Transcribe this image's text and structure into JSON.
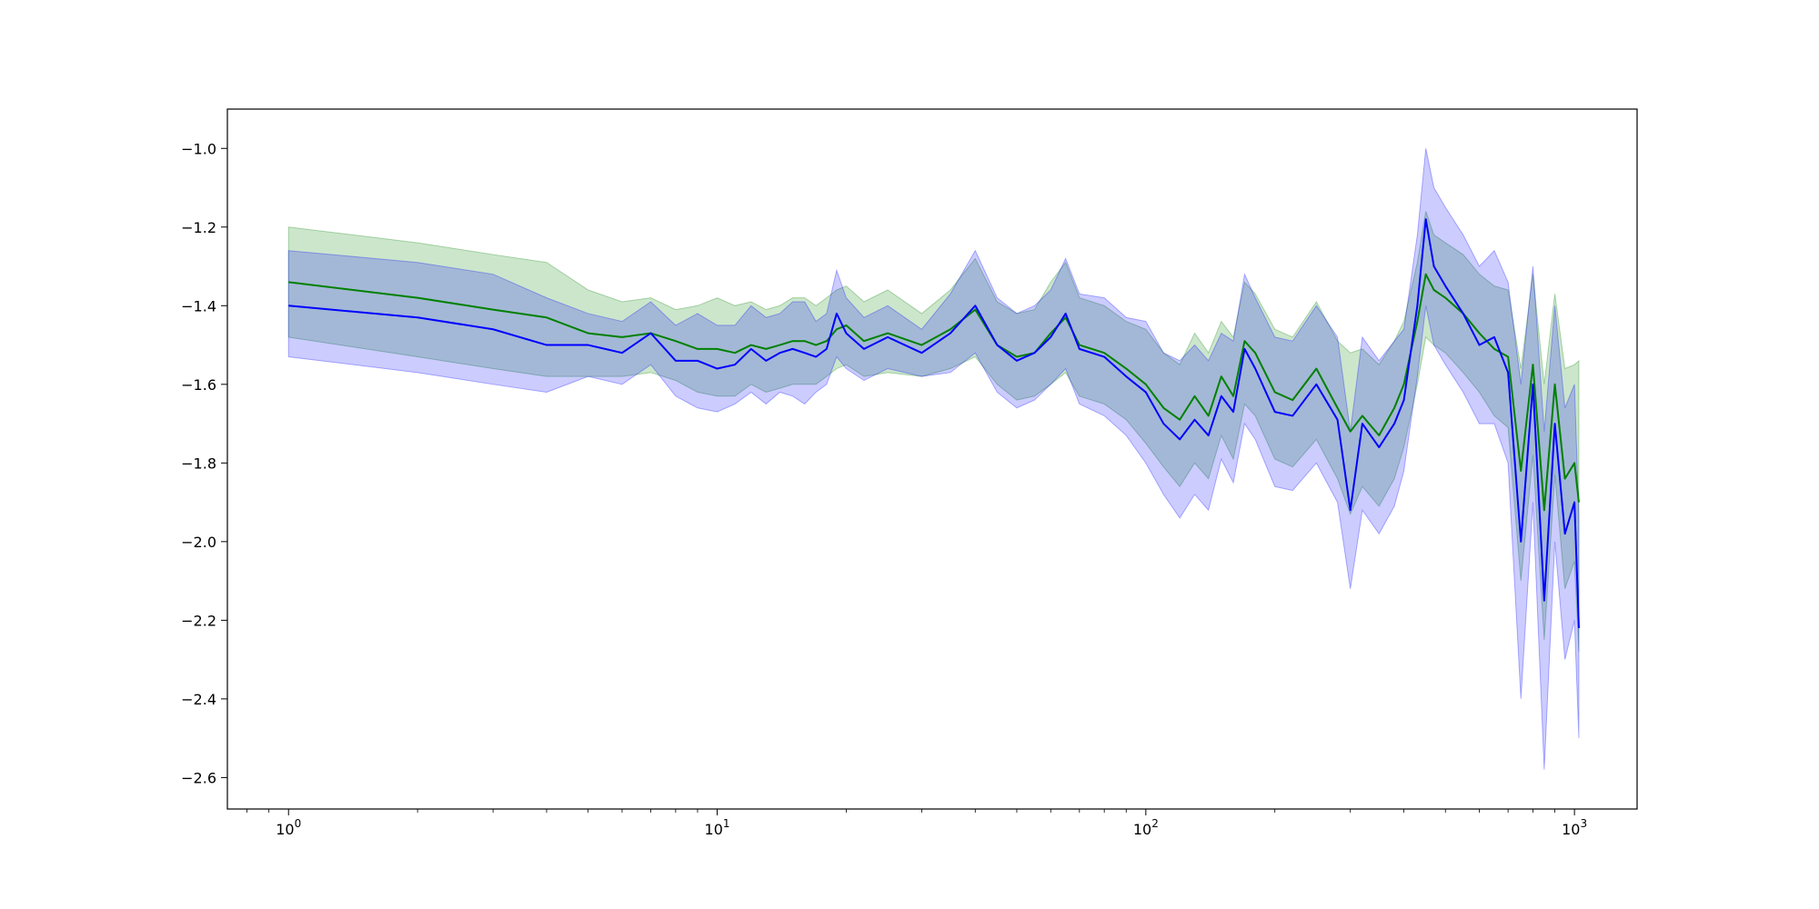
{
  "chart_data": {
    "type": "line",
    "title": "",
    "xlabel": "",
    "ylabel": "",
    "xscale": "log",
    "xlim": [
      0.72,
      1400
    ],
    "ylim": [
      -2.68,
      -0.9
    ],
    "grid": false,
    "legend": "none",
    "x_ticks": [
      {
        "value": 1,
        "base": "10",
        "exp": "0"
      },
      {
        "value": 10,
        "base": "10",
        "exp": "1"
      },
      {
        "value": 100,
        "base": "10",
        "exp": "2"
      },
      {
        "value": 1000,
        "base": "10",
        "exp": "3"
      }
    ],
    "y_ticks": [
      {
        "value": -1.0,
        "label": "−1.0"
      },
      {
        "value": -1.2,
        "label": "−1.2"
      },
      {
        "value": -1.4,
        "label": "−1.4"
      },
      {
        "value": -1.6,
        "label": "−1.6"
      },
      {
        "value": -1.8,
        "label": "−1.8"
      },
      {
        "value": -2.0,
        "label": "−2.0"
      },
      {
        "value": -2.2,
        "label": "−2.2"
      },
      {
        "value": -2.4,
        "label": "−2.4"
      },
      {
        "value": -2.6,
        "label": "−2.6"
      }
    ],
    "series": [
      {
        "color": "#008000",
        "band_color": "#008000",
        "band_opacity": 0.2,
        "x": [
          1,
          2,
          3,
          4,
          5,
          6,
          7,
          8,
          9,
          10,
          11,
          12,
          13,
          14,
          15,
          16,
          17,
          18,
          19,
          20,
          22,
          25,
          30,
          35,
          40,
          45,
          50,
          55,
          60,
          65,
          70,
          80,
          90,
          100,
          110,
          120,
          130,
          140,
          150,
          160,
          170,
          180,
          200,
          220,
          250,
          280,
          300,
          320,
          350,
          380,
          400,
          430,
          450,
          470,
          500,
          550,
          600,
          650,
          700,
          750,
          800,
          850,
          900,
          950,
          1000,
          1024
        ],
        "y": [
          -1.34,
          -1.38,
          -1.41,
          -1.43,
          -1.47,
          -1.48,
          -1.47,
          -1.49,
          -1.51,
          -1.51,
          -1.52,
          -1.5,
          -1.51,
          -1.5,
          -1.49,
          -1.49,
          -1.5,
          -1.49,
          -1.46,
          -1.45,
          -1.49,
          -1.47,
          -1.5,
          -1.46,
          -1.41,
          -1.5,
          -1.53,
          -1.52,
          -1.47,
          -1.43,
          -1.5,
          -1.52,
          -1.56,
          -1.6,
          -1.66,
          -1.69,
          -1.63,
          -1.68,
          -1.58,
          -1.63,
          -1.49,
          -1.52,
          -1.62,
          -1.64,
          -1.56,
          -1.66,
          -1.72,
          -1.68,
          -1.73,
          -1.66,
          -1.6,
          -1.44,
          -1.32,
          -1.36,
          -1.38,
          -1.42,
          -1.47,
          -1.51,
          -1.53,
          -1.82,
          -1.55,
          -1.92,
          -1.6,
          -1.84,
          -1.8,
          -1.9
        ],
        "lower": [
          -1.48,
          -1.53,
          -1.56,
          -1.58,
          -1.58,
          -1.58,
          -1.57,
          -1.59,
          -1.62,
          -1.63,
          -1.63,
          -1.6,
          -1.62,
          -1.61,
          -1.6,
          -1.6,
          -1.6,
          -1.58,
          -1.56,
          -1.55,
          -1.58,
          -1.57,
          -1.58,
          -1.56,
          -1.53,
          -1.6,
          -1.64,
          -1.63,
          -1.6,
          -1.57,
          -1.63,
          -1.65,
          -1.69,
          -1.75,
          -1.81,
          -1.86,
          -1.8,
          -1.84,
          -1.73,
          -1.79,
          -1.65,
          -1.68,
          -1.79,
          -1.81,
          -1.74,
          -1.84,
          -1.93,
          -1.86,
          -1.91,
          -1.84,
          -1.76,
          -1.6,
          -1.48,
          -1.5,
          -1.52,
          -1.57,
          -1.62,
          -1.68,
          -1.71,
          -2.1,
          -1.78,
          -2.25,
          -1.83,
          -2.12,
          -2.05,
          -2.28
        ],
        "upper": [
          -1.2,
          -1.24,
          -1.27,
          -1.29,
          -1.36,
          -1.39,
          -1.38,
          -1.41,
          -1.4,
          -1.38,
          -1.4,
          -1.39,
          -1.41,
          -1.4,
          -1.38,
          -1.38,
          -1.4,
          -1.38,
          -1.36,
          -1.35,
          -1.39,
          -1.36,
          -1.42,
          -1.36,
          -1.28,
          -1.39,
          -1.42,
          -1.41,
          -1.34,
          -1.29,
          -1.38,
          -1.4,
          -1.44,
          -1.46,
          -1.52,
          -1.55,
          -1.47,
          -1.52,
          -1.44,
          -1.48,
          -1.34,
          -1.37,
          -1.46,
          -1.48,
          -1.39,
          -1.49,
          -1.52,
          -1.51,
          -1.55,
          -1.49,
          -1.44,
          -1.29,
          -1.16,
          -1.22,
          -1.24,
          -1.27,
          -1.32,
          -1.35,
          -1.36,
          -1.56,
          -1.32,
          -1.6,
          -1.37,
          -1.56,
          -1.55,
          -1.54
        ]
      },
      {
        "color": "#0000ff",
        "band_color": "#0000ff",
        "band_opacity": 0.2,
        "x": [
          1,
          2,
          3,
          4,
          5,
          6,
          7,
          8,
          9,
          10,
          11,
          12,
          13,
          14,
          15,
          16,
          17,
          18,
          19,
          20,
          22,
          25,
          30,
          35,
          40,
          45,
          50,
          55,
          60,
          65,
          70,
          80,
          90,
          100,
          110,
          120,
          130,
          140,
          150,
          160,
          170,
          180,
          200,
          220,
          250,
          280,
          300,
          320,
          350,
          380,
          400,
          430,
          450,
          470,
          500,
          550,
          600,
          650,
          700,
          750,
          800,
          850,
          900,
          950,
          1000,
          1024
        ],
        "y": [
          -1.4,
          -1.43,
          -1.46,
          -1.5,
          -1.5,
          -1.52,
          -1.47,
          -1.54,
          -1.54,
          -1.56,
          -1.55,
          -1.51,
          -1.54,
          -1.52,
          -1.51,
          -1.52,
          -1.53,
          -1.51,
          -1.42,
          -1.47,
          -1.51,
          -1.48,
          -1.52,
          -1.47,
          -1.4,
          -1.5,
          -1.54,
          -1.52,
          -1.48,
          -1.42,
          -1.51,
          -1.53,
          -1.58,
          -1.62,
          -1.7,
          -1.74,
          -1.69,
          -1.73,
          -1.63,
          -1.67,
          -1.51,
          -1.56,
          -1.67,
          -1.68,
          -1.6,
          -1.69,
          -1.92,
          -1.7,
          -1.76,
          -1.7,
          -1.64,
          -1.4,
          -1.18,
          -1.3,
          -1.35,
          -1.42,
          -1.5,
          -1.48,
          -1.57,
          -2.0,
          -1.6,
          -2.15,
          -1.7,
          -1.98,
          -1.9,
          -2.22
        ],
        "lower": [
          -1.53,
          -1.57,
          -1.6,
          -1.62,
          -1.58,
          -1.6,
          -1.55,
          -1.63,
          -1.66,
          -1.67,
          -1.65,
          -1.62,
          -1.65,
          -1.62,
          -1.63,
          -1.65,
          -1.62,
          -1.6,
          -1.53,
          -1.56,
          -1.59,
          -1.56,
          -1.58,
          -1.57,
          -1.52,
          -1.62,
          -1.66,
          -1.64,
          -1.6,
          -1.56,
          -1.65,
          -1.68,
          -1.73,
          -1.8,
          -1.88,
          -1.94,
          -1.88,
          -1.92,
          -1.79,
          -1.85,
          -1.7,
          -1.74,
          -1.86,
          -1.87,
          -1.8,
          -1.9,
          -2.12,
          -1.92,
          -1.98,
          -1.91,
          -1.82,
          -1.58,
          -1.4,
          -1.5,
          -1.55,
          -1.62,
          -1.7,
          -1.7,
          -1.8,
          -2.4,
          -1.9,
          -2.58,
          -2.0,
          -2.3,
          -2.2,
          -2.5
        ],
        "upper": [
          -1.26,
          -1.29,
          -1.32,
          -1.38,
          -1.42,
          -1.44,
          -1.39,
          -1.45,
          -1.42,
          -1.45,
          -1.45,
          -1.4,
          -1.43,
          -1.42,
          -1.39,
          -1.39,
          -1.44,
          -1.42,
          -1.31,
          -1.38,
          -1.43,
          -1.4,
          -1.46,
          -1.37,
          -1.26,
          -1.38,
          -1.42,
          -1.4,
          -1.36,
          -1.28,
          -1.37,
          -1.38,
          -1.43,
          -1.44,
          -1.52,
          -1.54,
          -1.5,
          -1.54,
          -1.47,
          -1.49,
          -1.32,
          -1.38,
          -1.48,
          -1.49,
          -1.4,
          -1.48,
          -1.72,
          -1.48,
          -1.54,
          -1.49,
          -1.46,
          -1.22,
          -1.0,
          -1.1,
          -1.15,
          -1.22,
          -1.3,
          -1.26,
          -1.34,
          -1.6,
          -1.3,
          -1.72,
          -1.4,
          -1.66,
          -1.6,
          -1.94
        ]
      }
    ]
  }
}
